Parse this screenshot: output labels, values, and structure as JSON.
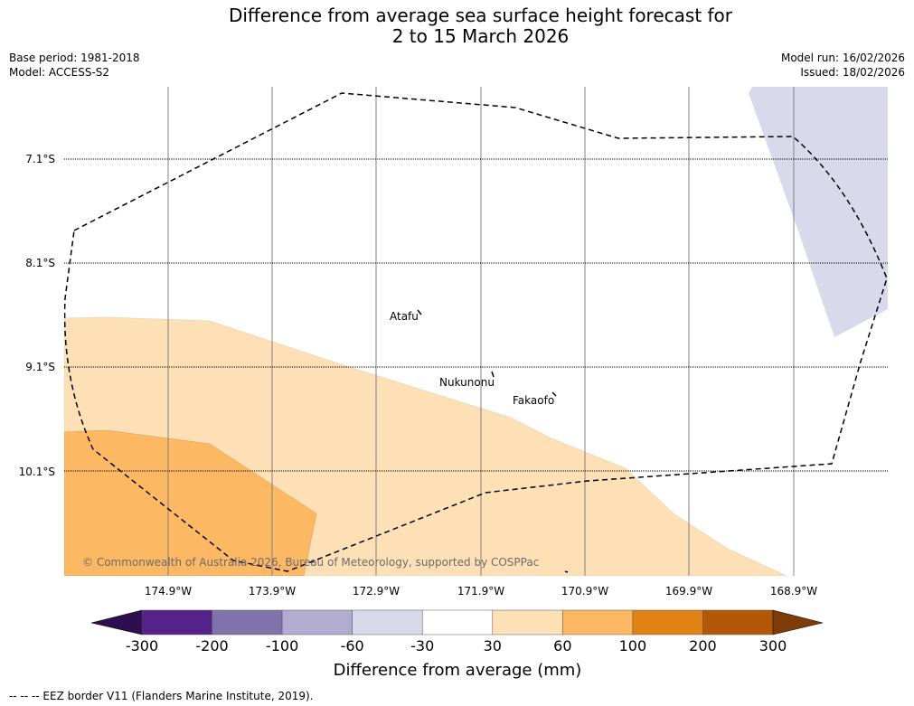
{
  "title": {
    "line1": "Difference from average sea surface height forecast for",
    "line2": "2 to 15 March 2026"
  },
  "meta_left": {
    "base_period": "Base period: 1981-2018",
    "model": "Model: ACCESS-S2"
  },
  "meta_right": {
    "model_run": "Model run: 16/02/2026",
    "issued": "Issued: 18/02/2026"
  },
  "map": {
    "lat_labels": [
      "7.1°S",
      "8.1°S",
      "9.1°S",
      "10.1°S"
    ],
    "lon_labels": [
      "174.9°W",
      "173.9°W",
      "172.9°W",
      "171.9°W",
      "170.9°W",
      "169.9°W",
      "168.9°W"
    ],
    "places": [
      "Atafu",
      "Nukunonu",
      "Fakaofo"
    ],
    "copyright": "© Commonwealth of Australia 2026, Bureau of Meteorology, supported by COSPPac"
  },
  "colorbar": {
    "title": "Difference from average (mm)",
    "tick_labels": [
      "-300",
      "-200",
      "-100",
      "-60",
      "-30",
      "30",
      "60",
      "100",
      "200",
      "300"
    ],
    "colors": [
      "#2d0e4e",
      "#542288",
      "#8073ac",
      "#b2abd2",
      "#d8daeb",
      "#ffffff",
      "#fee0b6",
      "#fdb863",
      "#e08214",
      "#b35806",
      "#7f3b08"
    ]
  },
  "footnote": "--  --  -- EEZ border V11 (Flanders Marine Institute, 2019)."
}
